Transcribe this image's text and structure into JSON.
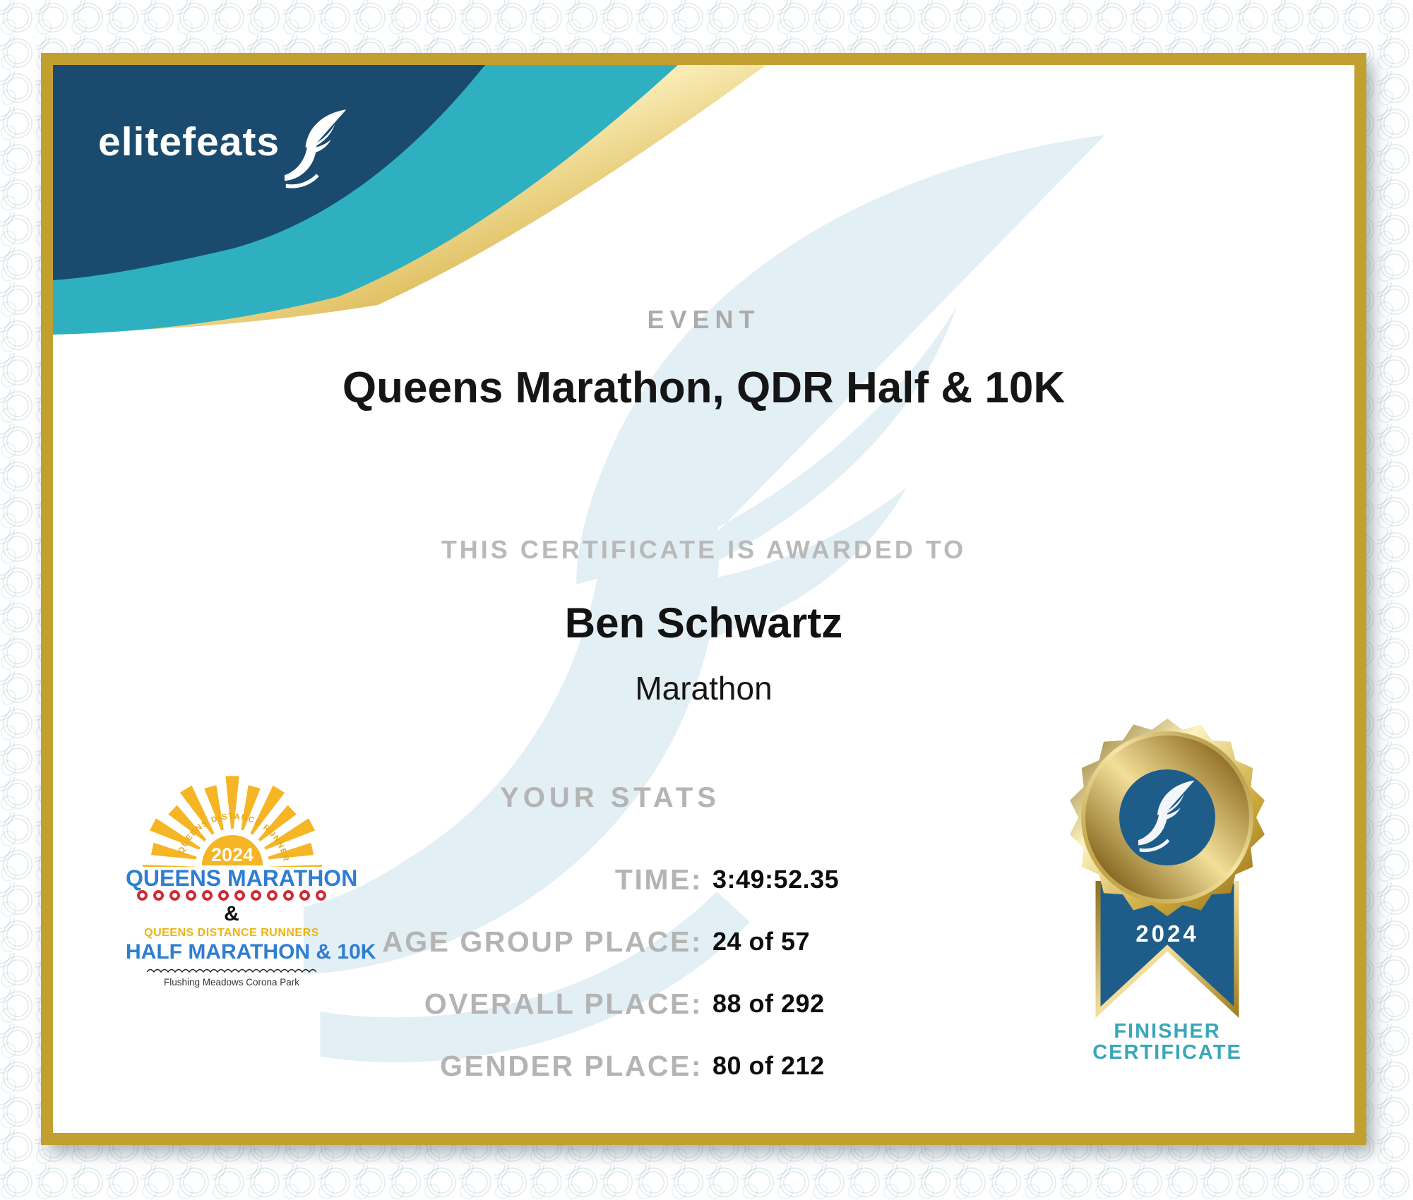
{
  "brand": {
    "name": "elitefeats"
  },
  "certificate": {
    "event_label": "EVENT",
    "event_name": "Queens Marathon, QDR Half & 10K",
    "awarded_label": "THIS CERTIFICATE IS AWARDED TO",
    "recipient": "Ben Schwartz",
    "division": "Marathon",
    "stats_label": "YOUR STATS",
    "stats": [
      {
        "label": "TIME:",
        "value": "3:49:52.35"
      },
      {
        "label": "AGE GROUP PLACE:",
        "value": "24 of 57"
      },
      {
        "label": "OVERALL PLACE:",
        "value": "88 of 292"
      },
      {
        "label": "GENDER PLACE:",
        "value": "80 of 212"
      }
    ]
  },
  "event_logo": {
    "year": "2024",
    "arc_text": "QUEENS DISTANCE RUNNERS",
    "title": "QUEENS MARATHON",
    "ampersand": "&",
    "club": "QUEENS DISTANCE RUNNERS",
    "races": "HALF MARATHON & 10K",
    "location": "Flushing Meadows Corona Park"
  },
  "medal": {
    "year": "2024",
    "caption_line1": "FINISHER",
    "caption_line2": "CERTIFICATE"
  },
  "colors": {
    "header_navy": "#1a4b6e",
    "header_teal": "#2fb0c1",
    "frame_gold": "#c2a030",
    "logo_blue": "#2e7ed2",
    "logo_gold": "#eeb211",
    "logo_red": "#cf2b39",
    "sun_gold": "#f5b524",
    "medal_blue": "#1e5d89",
    "finisher_teal": "#3aa6ba",
    "label_gray": "#b4b4b4",
    "watermark_blue": "#e2eff5"
  }
}
